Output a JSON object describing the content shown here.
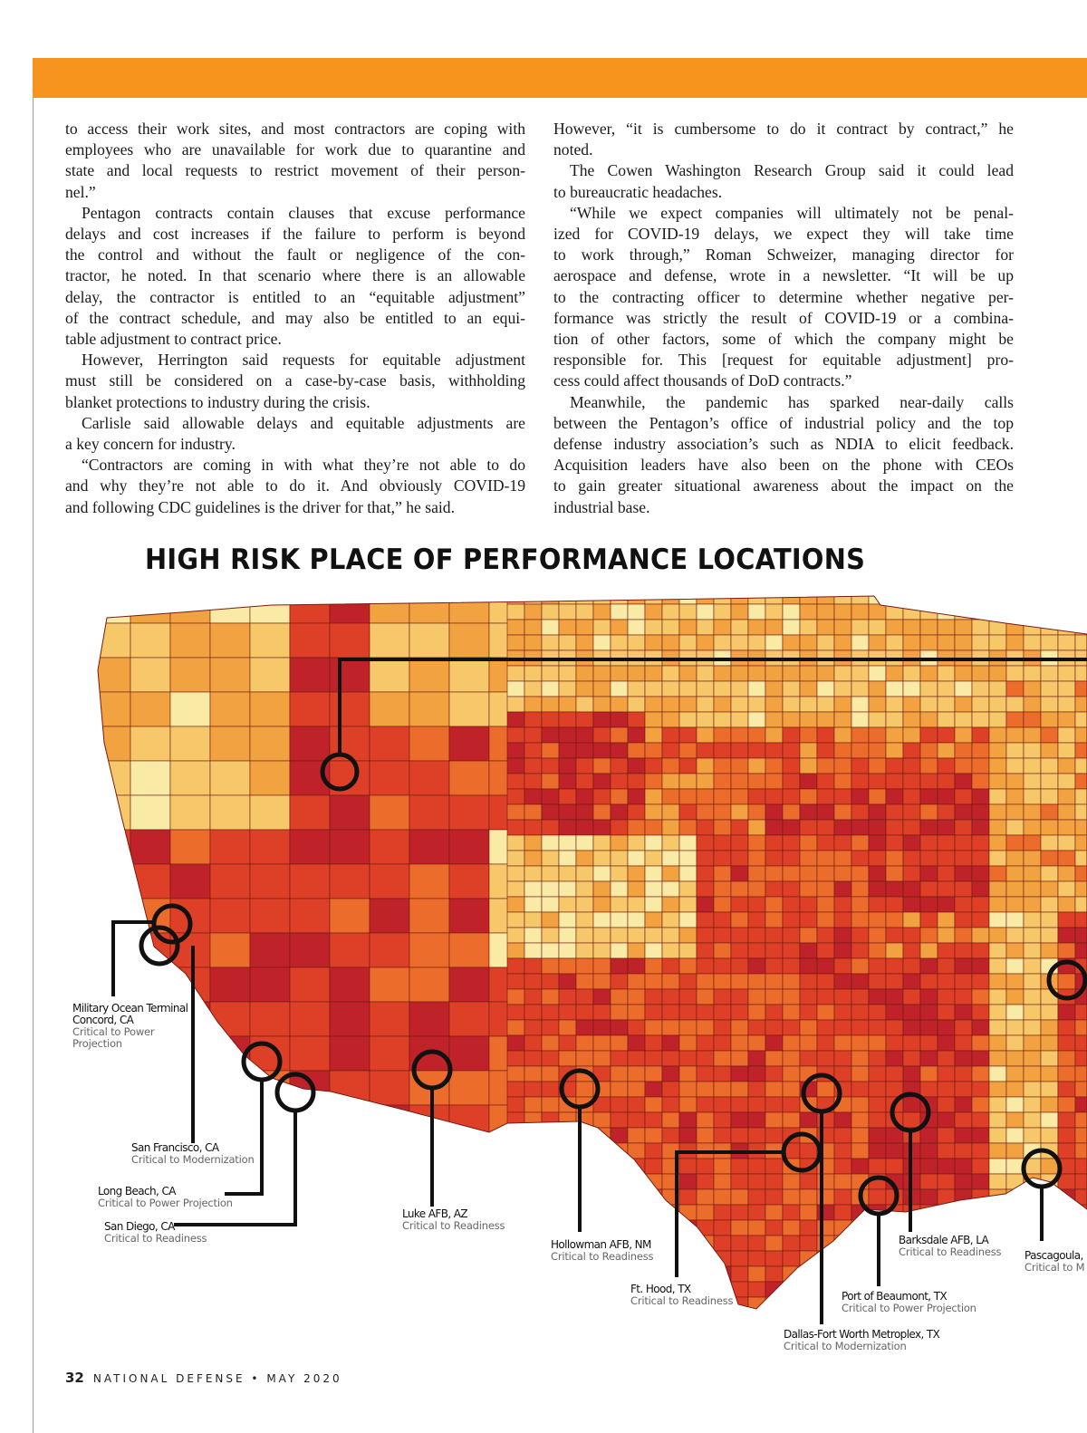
{
  "colors": {
    "accent_bar": "#f7941d",
    "map_palette": [
      "#f9eaa6",
      "#f6c86a",
      "#f2a240",
      "#eb6c2b",
      "#de3f27",
      "#bf2229"
    ]
  },
  "article": {
    "left_column": [
      {
        "indent": false,
        "lines": [
          "to access their work sites, and most contractors are coping with",
          "employees who are unavailable for work due to quarantine and",
          "state and local requests to restrict movement of their person-",
          "nel.”"
        ]
      },
      {
        "indent": true,
        "lines": [
          "Pentagon contracts contain clauses that excuse performance",
          "delays and cost increases if the failure to perform is beyond",
          "the control and without the fault or negligence of the con-",
          "tractor, he noted. In that scenario where there is an allowable",
          "delay, the contractor is entitled to an “equitable adjustment”",
          "of the contract schedule, and may also be entitled to an equi-",
          "table adjustment to contract price."
        ]
      },
      {
        "indent": true,
        "lines": [
          "However, Herrington said requests for equitable adjustment",
          "must still be considered on a case-by-case basis, withholding",
          "blanket protections to industry during the crisis."
        ]
      },
      {
        "indent": true,
        "lines": [
          "Carlisle said allowable delays and equitable adjustments are",
          "a key concern for industry."
        ]
      },
      {
        "indent": true,
        "lines": [
          "“Contractors are coming in with what they’re not able to do",
          "and why they’re not able to do it. And obviously COVID-19",
          "and following CDC guidelines is the driver for that,” he said."
        ]
      }
    ],
    "right_column": [
      {
        "indent": false,
        "lines": [
          "However, “it is cumbersome to do it contract by contract,” he",
          "noted."
        ]
      },
      {
        "indent": true,
        "lines": [
          "The Cowen Washington Research Group said it could lead",
          "to bureaucratic headaches."
        ]
      },
      {
        "indent": true,
        "lines": [
          "“While we expect companies will ultimately not be penal-",
          "ized for COVID-19 delays, we expect they will take time",
          "to work through,” Roman Schweizer, managing director for",
          "aerospace and defense, wrote in a newsletter. “It will be up",
          "to the contracting officer to determine whether negative per-",
          "formance was strictly the result of COVID-19 or a combina-",
          "tion of other factors, some of which the company might be",
          "responsible for. This [request for equitable adjustment] pro-",
          "cess could affect thousands of DoD contracts.”"
        ]
      },
      {
        "indent": true,
        "lines": [
          "Meanwhile, the pandemic has sparked near-daily calls",
          "between the Pentagon’s office of industrial policy and the top",
          "defense industry association’s such as NDIA to elicit feedback.",
          "Acquisition leaders have also been on the phone with CEOs",
          "to gain greater situational awareness about the impact on the",
          "industrial base."
        ]
      }
    ]
  },
  "map": {
    "title": "HIGH RISK PLACE OF PERFORMANCE LOCATIONS",
    "locations": [
      {
        "name": "Military Ocean Terminal Concord, CA",
        "criticality": "Critical to Power Projection"
      },
      {
        "name": "San Francisco, CA",
        "criticality": "Critical to Modernization"
      },
      {
        "name": "Long Beach, CA",
        "criticality": "Critical to Power Projection"
      },
      {
        "name": "San Diego, CA",
        "criticality": "Critical to Readiness"
      },
      {
        "name": "Luke AFB, AZ",
        "criticality": "Critical to Readiness"
      },
      {
        "name": "Hollowman AFB, NM",
        "criticality": "Critical to Readiness"
      },
      {
        "name": "Ft. Hood, TX",
        "criticality": "Critical to Readiness"
      },
      {
        "name": "Dallas-Fort Worth Metroplex, TX",
        "criticality": "Critical to Modernization"
      },
      {
        "name": "Port of Beaumont, TX",
        "criticality": "Critical to Power Projection"
      },
      {
        "name": "Barksdale AFB, LA",
        "criticality": "Critical to Readiness"
      },
      {
        "name": "Pascagoula,",
        "criticality": "Critical to M"
      }
    ]
  },
  "footer": {
    "page_number": "32",
    "publication": "NATIONAL DEFENSE • MAY 2020"
  }
}
